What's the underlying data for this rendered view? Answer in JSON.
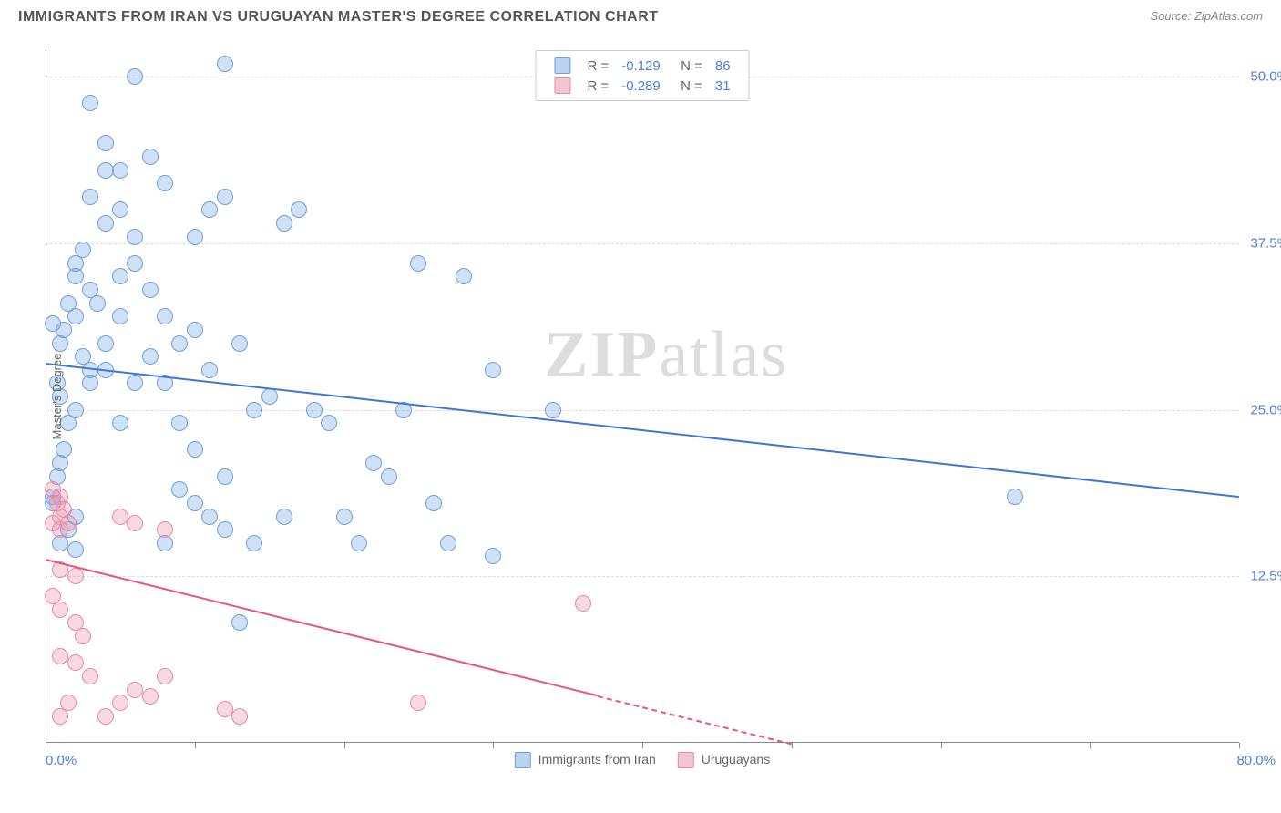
{
  "title": "IMMIGRANTS FROM IRAN VS URUGUAYAN MASTER'S DEGREE CORRELATION CHART",
  "source": "Source: ZipAtlas.com",
  "ylabel": "Master's Degree",
  "watermark": {
    "zip": "ZIP",
    "atlas": "atlas"
  },
  "chart": {
    "type": "scatter",
    "background_color": "#ffffff",
    "grid_color": "#dddddd",
    "axis_color": "#888888",
    "xlim": [
      0,
      80
    ],
    "ylim": [
      0,
      52
    ],
    "xtick_positions": [
      0,
      10,
      20,
      30,
      40,
      50,
      60,
      70,
      80
    ],
    "ytick_positions": [
      12.5,
      25.0,
      37.5,
      50.0
    ],
    "ytick_labels": [
      "12.5%",
      "25.0%",
      "37.5%",
      "50.0%"
    ],
    "xlabel_min": "0.0%",
    "xlabel_max": "80.0%",
    "point_radius": 9,
    "point_stroke_width": 1.5,
    "series": [
      {
        "name": "Immigrants from Iran",
        "fill_color": "rgba(120,165,225,0.35)",
        "stroke_color": "#6f9fdf",
        "swatch_fill": "#bcd3f0",
        "swatch_stroke": "#6f9fdf",
        "R": "-0.129",
        "N": "86",
        "trend": {
          "x1": 0,
          "y1": 28.5,
          "x2": 80,
          "y2": 18.5,
          "solid_until_x": 80,
          "color": "#3d78d6",
          "width": 2
        },
        "points": [
          [
            1,
            15
          ],
          [
            1.5,
            16
          ],
          [
            2,
            14.5
          ],
          [
            0.5,
            18
          ],
          [
            0.8,
            20
          ],
          [
            1,
            21
          ],
          [
            1.2,
            22
          ],
          [
            2,
            17
          ],
          [
            1.5,
            24
          ],
          [
            2,
            25
          ],
          [
            1,
            26
          ],
          [
            0.8,
            27
          ],
          [
            3,
            28
          ],
          [
            2.5,
            29
          ],
          [
            1,
            30
          ],
          [
            1.2,
            31
          ],
          [
            2,
            32
          ],
          [
            0.5,
            31.5
          ],
          [
            1.5,
            33
          ],
          [
            3,
            34
          ],
          [
            2,
            35
          ],
          [
            4,
            30
          ],
          [
            3.5,
            33
          ],
          [
            5,
            35
          ],
          [
            6,
            38
          ],
          [
            4,
            39
          ],
          [
            5,
            40
          ],
          [
            3,
            41
          ],
          [
            4,
            43
          ],
          [
            2,
            36
          ],
          [
            2.5,
            37
          ],
          [
            6,
            36
          ],
          [
            7,
            34
          ],
          [
            8,
            32
          ],
          [
            9,
            30
          ],
          [
            10,
            38
          ],
          [
            11,
            40
          ],
          [
            12,
            41
          ],
          [
            12,
            51
          ],
          [
            6,
            50
          ],
          [
            4,
            45
          ],
          [
            5,
            43
          ],
          [
            3,
            48
          ],
          [
            7,
            44
          ],
          [
            8,
            42
          ],
          [
            13,
            30
          ],
          [
            14,
            25
          ],
          [
            15,
            26
          ],
          [
            16,
            39
          ],
          [
            17,
            40
          ],
          [
            10,
            31
          ],
          [
            11,
            28
          ],
          [
            9,
            24
          ],
          [
            10,
            22
          ],
          [
            12,
            20
          ],
          [
            8,
            15
          ],
          [
            14,
            15
          ],
          [
            13,
            9
          ],
          [
            11,
            17
          ],
          [
            16,
            17
          ],
          [
            18,
            25
          ],
          [
            19,
            24
          ],
          [
            22,
            21
          ],
          [
            20,
            17
          ],
          [
            21,
            15
          ],
          [
            25,
            36
          ],
          [
            24,
            25
          ],
          [
            23,
            20
          ],
          [
            27,
            15
          ],
          [
            30,
            28
          ],
          [
            28,
            35
          ],
          [
            34,
            25
          ],
          [
            26,
            18
          ],
          [
            30,
            14
          ],
          [
            4,
            28
          ],
          [
            6,
            27
          ],
          [
            7,
            29
          ],
          [
            5,
            24
          ],
          [
            8,
            27
          ],
          [
            3,
            27
          ],
          [
            9,
            19
          ],
          [
            10,
            18
          ],
          [
            12,
            16
          ],
          [
            0.5,
            18.5
          ],
          [
            65,
            18.5
          ],
          [
            5,
            32
          ]
        ]
      },
      {
        "name": "Uruguayans",
        "fill_color": "rgba(235,145,170,0.35)",
        "stroke_color": "#e68aa5",
        "swatch_fill": "#f3c6d3",
        "swatch_stroke": "#e68aa5",
        "R": "-0.289",
        "N": "31",
        "trend": {
          "x1": 0,
          "y1": 13.8,
          "x2": 50,
          "y2": 0,
          "solid_until_x": 37,
          "color": "#e6577f",
          "width": 2
        },
        "points": [
          [
            0.5,
            19
          ],
          [
            1,
            18.5
          ],
          [
            0.8,
            18
          ],
          [
            1.2,
            17.5
          ],
          [
            1,
            17
          ],
          [
            0.5,
            16.5
          ],
          [
            1,
            16
          ],
          [
            1.5,
            16.5
          ],
          [
            1,
            13
          ],
          [
            2,
            12.5
          ],
          [
            0.5,
            11
          ],
          [
            1,
            10
          ],
          [
            2,
            9
          ],
          [
            2.5,
            8
          ],
          [
            1,
            6.5
          ],
          [
            2,
            6
          ],
          [
            3,
            5
          ],
          [
            1.5,
            3
          ],
          [
            1,
            2
          ],
          [
            4,
            2
          ],
          [
            5,
            3
          ],
          [
            6,
            4
          ],
          [
            7,
            3.5
          ],
          [
            8,
            5
          ],
          [
            5,
            17
          ],
          [
            6,
            16.5
          ],
          [
            8,
            16
          ],
          [
            12,
            2.5
          ],
          [
            13,
            2
          ],
          [
            25,
            3
          ],
          [
            36,
            10.5
          ]
        ]
      }
    ]
  },
  "legend_bottom": [
    {
      "label": "Immigrants from Iran",
      "fill": "#bcd3f0",
      "stroke": "#6f9fdf"
    },
    {
      "label": "Uruguayans",
      "fill": "#f3c6d3",
      "stroke": "#e68aa5"
    }
  ]
}
